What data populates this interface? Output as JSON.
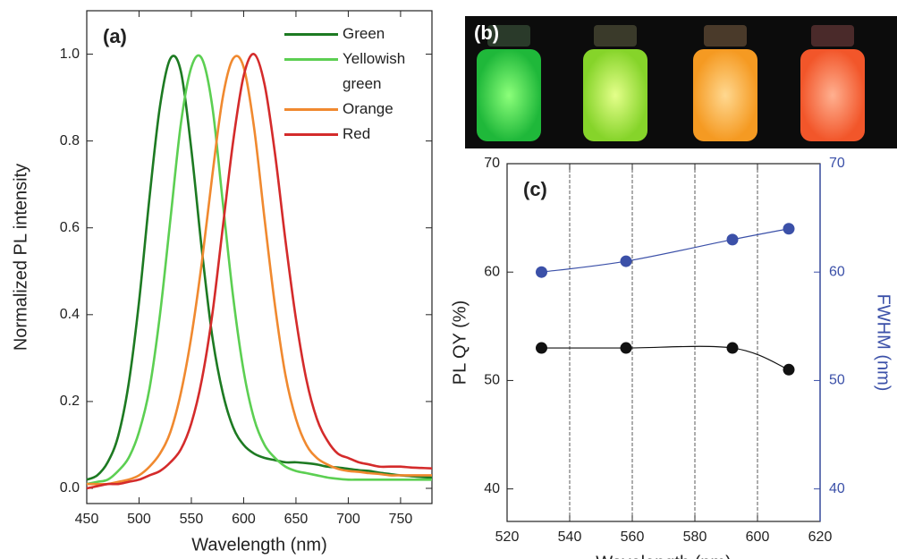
{
  "chart_data": [
    {
      "type": "line",
      "label": "(a)",
      "xlabel": "Wavelength (nm)",
      "ylabel": "Normalized PL intensity",
      "xlim": [
        450,
        780
      ],
      "ylim": [
        -0.035,
        1.1
      ],
      "xticks": [
        450,
        500,
        550,
        600,
        650,
        700,
        750
      ],
      "yticks": [
        {
          "value": 0,
          "label": "0.0"
        },
        0.2,
        0.4,
        0.6,
        0.8,
        {
          "value": 1,
          "label": "1.0"
        }
      ],
      "legend": "upper right",
      "smooth": true,
      "x": [
        450,
        460,
        470,
        480,
        490,
        500,
        510,
        520,
        530,
        540,
        550,
        560,
        570,
        580,
        590,
        600,
        610,
        620,
        630,
        640,
        650,
        660,
        670,
        680,
        690,
        700,
        710,
        720,
        730,
        740,
        750,
        760,
        770,
        780
      ],
      "series": [
        {
          "name": "Green",
          "color": "#1d7a22",
          "values": [
            0.02,
            0.03,
            0.06,
            0.12,
            0.24,
            0.43,
            0.67,
            0.88,
            0.99,
            0.96,
            0.78,
            0.55,
            0.35,
            0.22,
            0.14,
            0.1,
            0.08,
            0.07,
            0.065,
            0.06,
            0.06,
            0.058,
            0.055,
            0.05,
            0.048,
            0.045,
            0.042,
            0.04,
            0.036,
            0.033,
            0.03,
            0.028,
            0.026,
            0.025
          ]
        },
        {
          "name": "Yellowish green",
          "color": "#5ccf52",
          "values": [
            0.01,
            0.015,
            0.02,
            0.04,
            0.07,
            0.13,
            0.23,
            0.4,
            0.62,
            0.84,
            0.97,
            0.99,
            0.88,
            0.66,
            0.44,
            0.27,
            0.16,
            0.1,
            0.07,
            0.05,
            0.04,
            0.035,
            0.03,
            0.025,
            0.022,
            0.02,
            0.02,
            0.02,
            0.02,
            0.02,
            0.02,
            0.02,
            0.02,
            0.02
          ]
        },
        {
          "name": "Orange",
          "color": "#f0892f",
          "values": [
            0.01,
            0.01,
            0.01,
            0.015,
            0.02,
            0.03,
            0.05,
            0.08,
            0.13,
            0.22,
            0.35,
            0.52,
            0.72,
            0.9,
            0.99,
            0.97,
            0.83,
            0.62,
            0.42,
            0.26,
            0.16,
            0.1,
            0.07,
            0.055,
            0.045,
            0.04,
            0.038,
            0.035,
            0.033,
            0.03,
            0.03,
            0.03,
            0.03,
            0.03
          ]
        },
        {
          "name": "Red",
          "color": "#d42b2b",
          "values": [
            0.0,
            0.005,
            0.01,
            0.01,
            0.015,
            0.02,
            0.03,
            0.04,
            0.06,
            0.09,
            0.15,
            0.25,
            0.4,
            0.6,
            0.8,
            0.95,
            1.0,
            0.93,
            0.77,
            0.57,
            0.39,
            0.25,
            0.16,
            0.11,
            0.08,
            0.07,
            0.06,
            0.055,
            0.05,
            0.05,
            0.05,
            0.048,
            0.047,
            0.046
          ]
        }
      ]
    },
    {
      "type": "line",
      "label": "(c)",
      "xlabel": "Wavelength (nm)",
      "ylabel": "PL QY (%)",
      "y2label": "FWHM (nm)",
      "xlim": [
        520,
        620
      ],
      "ylim": [
        37,
        70
      ],
      "y2lim": [
        37,
        70
      ],
      "xticks": [
        520,
        540,
        560,
        580,
        600,
        620
      ],
      "yticks": [
        40,
        50,
        60,
        70
      ],
      "y2ticks": [
        40,
        50,
        60,
        70
      ],
      "grid": "x",
      "smooth": true,
      "markers": true,
      "x": [
        531,
        558,
        592,
        610
      ],
      "series": [
        {
          "color": "#111111",
          "values": [
            53,
            53,
            53,
            51
          ]
        },
        {
          "color": "#3b50a8",
          "axis": "y2",
          "values": [
            60,
            61,
            63,
            64
          ]
        }
      ]
    }
  ],
  "photo": {
    "label": "(b)"
  }
}
